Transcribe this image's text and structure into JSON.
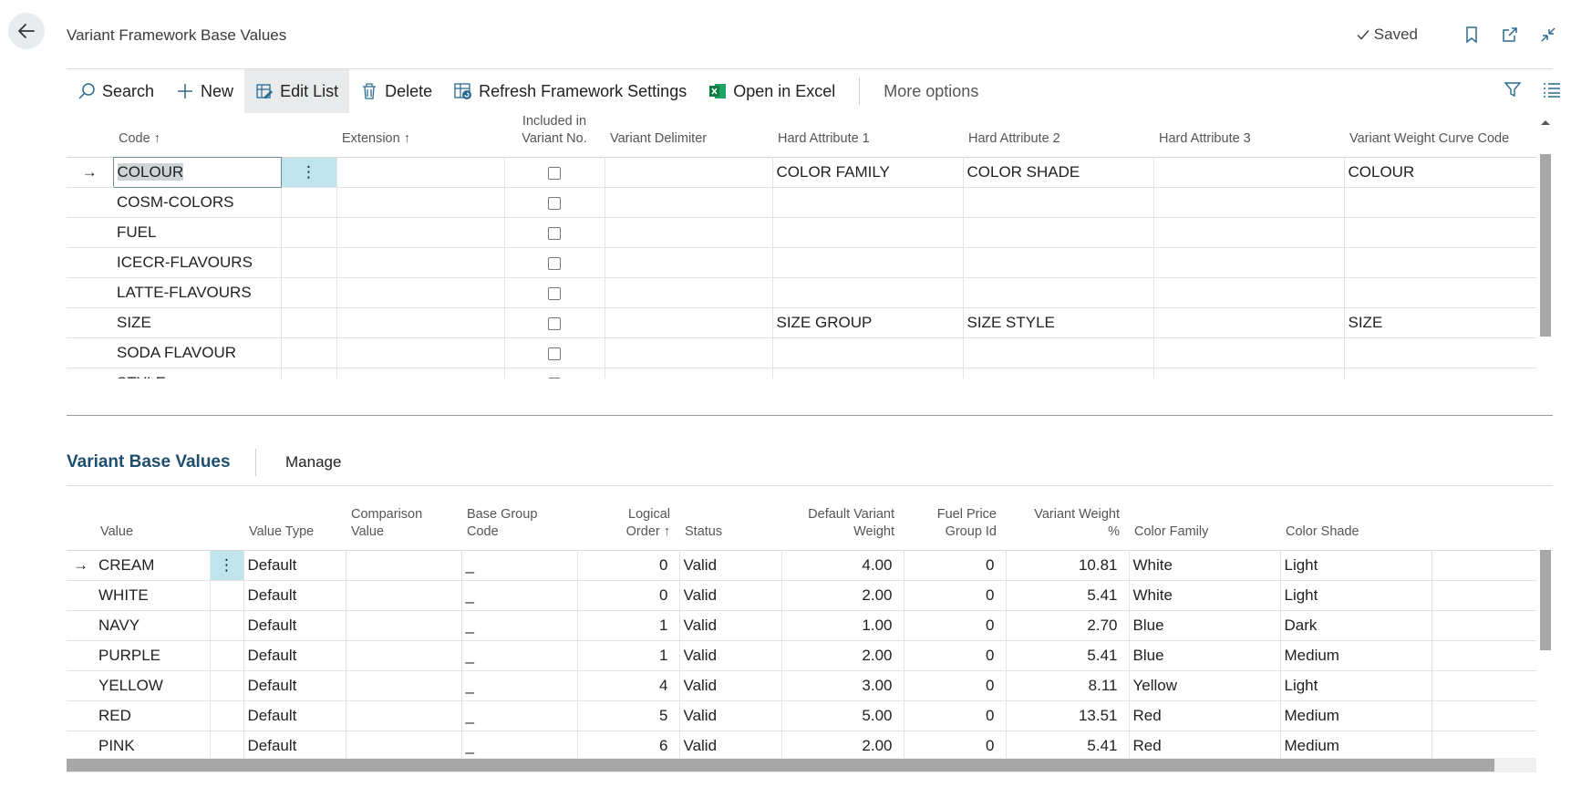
{
  "header": {
    "title": "Variant Framework Base Values",
    "saved_label": "Saved"
  },
  "actions": {
    "search": "Search",
    "new": "New",
    "edit_list": "Edit List",
    "delete": "Delete",
    "refresh": "Refresh Framework Settings",
    "open_excel": "Open in Excel",
    "more": "More options"
  },
  "upper": {
    "columns": {
      "code": "Code ↑",
      "extension": "Extension ↑",
      "included_line1": "Included in",
      "included_line2": "Variant No.",
      "delimiter": "Variant Delimiter",
      "hard1": "Hard Attribute 1",
      "hard2": "Hard Attribute 2",
      "hard3": "Hard Attribute 3",
      "curve": "Variant Weight Curve Code"
    },
    "rows": [
      {
        "code": "COLOUR",
        "hard1": "COLOR FAMILY",
        "hard2": "COLOR SHADE",
        "curve": "COLOUR"
      },
      {
        "code": "COSM-COLORS",
        "hard1": "",
        "hard2": "",
        "curve": ""
      },
      {
        "code": "FUEL",
        "hard1": "",
        "hard2": "",
        "curve": ""
      },
      {
        "code": "ICECR-FLAVOURS",
        "hard1": "",
        "hard2": "",
        "curve": ""
      },
      {
        "code": "LATTE-FLAVOURS",
        "hard1": "",
        "hard2": "",
        "curve": ""
      },
      {
        "code": "SIZE",
        "hard1": "SIZE GROUP",
        "hard2": "SIZE STYLE",
        "curve": "SIZE"
      },
      {
        "code": "SODA FLAVOUR",
        "hard1": "",
        "hard2": "",
        "curve": ""
      },
      {
        "code": "STYLE",
        "hard1": "",
        "hard2": "",
        "curve": ""
      }
    ]
  },
  "subpart": {
    "title": "Variant Base Values",
    "manage": "Manage",
    "columns": {
      "value": "Value",
      "value_type": "Value Type",
      "comparison_1": "Comparison",
      "comparison_2": "Value",
      "base_group_1": "Base Group",
      "base_group_2": "Code",
      "logical_1": "Logical",
      "logical_2": "Order ↑",
      "status": "Status",
      "dvw_1": "Default Variant",
      "dvw_2": "Weight",
      "fuel_1": "Fuel Price",
      "fuel_2": "Group Id",
      "vwp_1": "Variant Weight",
      "vwp_2": "%",
      "color_family": "Color Family",
      "color_shade": "Color Shade"
    },
    "rows": [
      {
        "value": "CREAM",
        "type": "Default",
        "base": "_",
        "order": "0",
        "status": "Valid",
        "dvw": "4.00",
        "fuel": "0",
        "vwp": "10.81",
        "family": "White",
        "shade": "Light"
      },
      {
        "value": "WHITE",
        "type": "Default",
        "base": "_",
        "order": "0",
        "status": "Valid",
        "dvw": "2.00",
        "fuel": "0",
        "vwp": "5.41",
        "family": "White",
        "shade": "Light"
      },
      {
        "value": "NAVY",
        "type": "Default",
        "base": "_",
        "order": "1",
        "status": "Valid",
        "dvw": "1.00",
        "fuel": "0",
        "vwp": "2.70",
        "family": "Blue",
        "shade": "Dark"
      },
      {
        "value": "PURPLE",
        "type": "Default",
        "base": "_",
        "order": "1",
        "status": "Valid",
        "dvw": "2.00",
        "fuel": "0",
        "vwp": "5.41",
        "family": "Blue",
        "shade": "Medium"
      },
      {
        "value": "YELLOW",
        "type": "Default",
        "base": "_",
        "order": "4",
        "status": "Valid",
        "dvw": "3.00",
        "fuel": "0",
        "vwp": "8.11",
        "family": "Yellow",
        "shade": "Light"
      },
      {
        "value": "RED",
        "type": "Default",
        "base": "_",
        "order": "5",
        "status": "Valid",
        "dvw": "5.00",
        "fuel": "0",
        "vwp": "13.51",
        "family": "Red",
        "shade": "Medium"
      },
      {
        "value": "PINK",
        "type": "Default",
        "base": "_",
        "order": "6",
        "status": "Valid",
        "dvw": "2.00",
        "fuel": "0",
        "vwp": "5.41",
        "family": "Red",
        "shade": "Medium"
      }
    ]
  }
}
